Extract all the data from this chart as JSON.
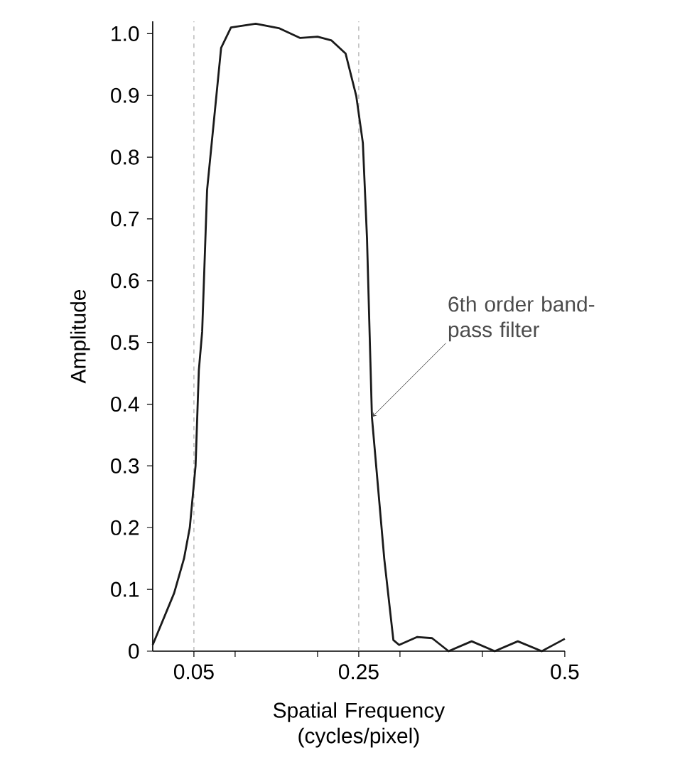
{
  "chart_data": {
    "type": "line",
    "xlabel": "Spatial Frequency (cycles/pixel)",
    "ylabel": "Amplitude",
    "x": [
      0,
      0.026,
      0.038,
      0.045,
      0.052,
      0.056,
      0.06,
      0.066,
      0.083,
      0.095,
      0.125,
      0.153,
      0.179,
      0.2,
      0.217,
      0.234,
      0.247,
      0.255,
      0.26,
      0.266,
      0.281,
      0.292,
      0.299,
      0.321,
      0.339,
      0.359,
      0.387,
      0.415,
      0.443,
      0.472,
      0.5
    ],
    "values": [
      0.01,
      0.094,
      0.15,
      0.2,
      0.3,
      0.455,
      0.517,
      0.747,
      0.977,
      1.01,
      1.016,
      1.009,
      0.993,
      0.995,
      0.989,
      0.968,
      0.899,
      0.823,
      0.669,
      0.379,
      0.149,
      0.018,
      0.01,
      0.023,
      0.021,
      0,
      0.016,
      0,
      0.016,
      0,
      0.02
    ],
    "color": "#1a1a1a",
    "xlim": [
      0,
      0.5
    ],
    "ylim": [
      0,
      1.02
    ],
    "xticks": [
      0.05,
      {
        "value": 0.1,
        "label": null
      },
      {
        "value": 0.2,
        "label": null
      },
      0.25,
      {
        "value": 0.3,
        "label": null
      },
      {
        "value": 0.4,
        "label": null
      },
      0.5
    ],
    "yticks": [
      0,
      0.1,
      0.2,
      0.3,
      0.4,
      0.5,
      0.6,
      0.7,
      0.8,
      0.9,
      {
        "value": 1,
        "label": "1.0"
      }
    ],
    "ref_lines": [
      {
        "axis": "x",
        "value": 0.05,
        "color": "#aaaaaa",
        "line_style": "dashed"
      },
      {
        "axis": "x",
        "value": 0.25,
        "color": "#aaaaaa",
        "line_style": "dashed"
      }
    ],
    "annotations": [
      {
        "text": "6th order band-pass filter",
        "x": 0.266,
        "y": 0.379
      }
    ]
  }
}
